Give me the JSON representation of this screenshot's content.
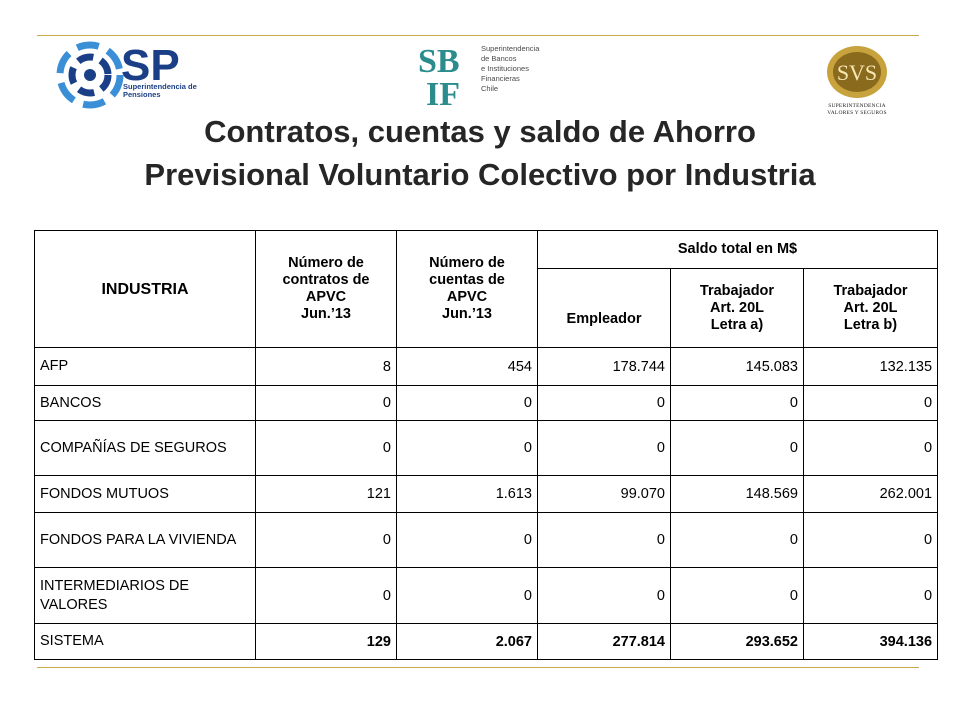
{
  "logos": {
    "sp": {
      "mark": "SP",
      "subtitle_line1": "Superintendencia de",
      "subtitle_line2": "Pensiones"
    },
    "sbif": {
      "mark_top": "SB",
      "mark_bottom": "IF",
      "lines": [
        "Superintendencia",
        "de Bancos",
        "e Instituciones",
        "Financieras",
        "Chile"
      ]
    },
    "svs": {
      "mark": "SVS",
      "line1": "SUPERINTENDENCIA",
      "line2": "VALORES Y SEGUROS"
    }
  },
  "colors": {
    "rule": "#c9a94a",
    "sp_blue": "#1b3f86",
    "sp_light": "#3a8fd6",
    "sbif_teal": "#2a8c8c",
    "svs_gold": "#c8a23c"
  },
  "title": {
    "line1": "Contratos, cuentas y saldo de Ahorro",
    "line2": "Previsional Voluntario Colectivo por Industria"
  },
  "table": {
    "header": {
      "industria": "INDUSTRIA",
      "contratos": [
        "Número de",
        "contratos de",
        "APVC",
        "Jun.’13"
      ],
      "cuentas": [
        "Número de",
        "cuentas de",
        "APVC",
        "Jun.’13"
      ],
      "saldo": "Saldo total en M$",
      "empleador": "Empleador",
      "trab_a": [
        "Trabajador",
        "Art. 20L",
        "Letra a)"
      ],
      "trab_b": [
        "Trabajador",
        "Art. 20L",
        "Letra b)"
      ]
    },
    "rows": [
      {
        "name": "AFP",
        "contratos": "8",
        "cuentas": "454",
        "empleador": "178.744",
        "trab_a": "145.083",
        "trab_b": "132.135"
      },
      {
        "name": "BANCOS",
        "contratos": "0",
        "cuentas": "0",
        "empleador": "0",
        "trab_a": "0",
        "trab_b": "0"
      },
      {
        "name": "COMPAÑÍAS DE SEGUROS",
        "contratos": "0",
        "cuentas": "0",
        "empleador": "0",
        "trab_a": "0",
        "trab_b": "0"
      },
      {
        "name": "FONDOS MUTUOS",
        "contratos": "121",
        "cuentas": "1.613",
        "empleador": "99.070",
        "trab_a": "148.569",
        "trab_b": "262.001"
      },
      {
        "name": "FONDOS PARA LA VIVIENDA",
        "contratos": "0",
        "cuentas": "0",
        "empleador": "0",
        "trab_a": "0",
        "trab_b": "0"
      },
      {
        "name": "INTERMEDIARIOS DE VALORES",
        "contratos": "0",
        "cuentas": "0",
        "empleador": "0",
        "trab_a": "0",
        "trab_b": "0"
      },
      {
        "name": "SISTEMA",
        "contratos": "129",
        "cuentas": "2.067",
        "empleador": "277.814",
        "trab_a": "293.652",
        "trab_b": "394.136"
      }
    ]
  }
}
